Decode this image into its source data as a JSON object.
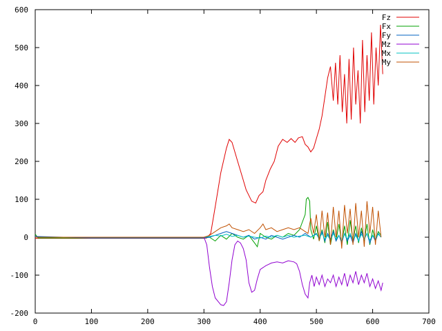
{
  "chart_data": {
    "type": "line",
    "title": "",
    "xlabel": "",
    "ylabel": "",
    "xlim": [
      0,
      700
    ],
    "ylim": [
      -200,
      600
    ],
    "xticks": [
      0,
      100,
      200,
      300,
      400,
      500,
      600,
      700
    ],
    "yticks": [
      -200,
      -100,
      0,
      100,
      200,
      300,
      400,
      500,
      600
    ],
    "grid": false,
    "legend": "top-right",
    "series": [
      {
        "name": "Fz",
        "color": "#e00000",
        "points": [
          [
            0,
            -3
          ],
          [
            100,
            -3
          ],
          [
            200,
            -3
          ],
          [
            300,
            -3
          ],
          [
            305,
            -2
          ],
          [
            312,
            10
          ],
          [
            320,
            80
          ],
          [
            330,
            170
          ],
          [
            340,
            235
          ],
          [
            345,
            258
          ],
          [
            350,
            250
          ],
          [
            360,
            200
          ],
          [
            368,
            160
          ],
          [
            375,
            125
          ],
          [
            385,
            95
          ],
          [
            392,
            90
          ],
          [
            398,
            110
          ],
          [
            405,
            120
          ],
          [
            410,
            150
          ],
          [
            418,
            180
          ],
          [
            425,
            200
          ],
          [
            432,
            240
          ],
          [
            440,
            258
          ],
          [
            448,
            250
          ],
          [
            455,
            260
          ],
          [
            462,
            250
          ],
          [
            468,
            262
          ],
          [
            475,
            265
          ],
          [
            480,
            245
          ],
          [
            485,
            238
          ],
          [
            490,
            225
          ],
          [
            495,
            235
          ],
          [
            500,
            260
          ],
          [
            505,
            285
          ],
          [
            510,
            320
          ],
          [
            515,
            370
          ],
          [
            520,
            420
          ],
          [
            525,
            450
          ],
          [
            530,
            360
          ],
          [
            534,
            460
          ],
          [
            538,
            350
          ],
          [
            542,
            480
          ],
          [
            546,
            330
          ],
          [
            550,
            430
          ],
          [
            554,
            300
          ],
          [
            558,
            470
          ],
          [
            562,
            310
          ],
          [
            566,
            500
          ],
          [
            570,
            350
          ],
          [
            574,
            440
          ],
          [
            578,
            300
          ],
          [
            582,
            520
          ],
          [
            586,
            330
          ],
          [
            590,
            480
          ],
          [
            594,
            360
          ],
          [
            598,
            540
          ],
          [
            602,
            350
          ],
          [
            606,
            500
          ],
          [
            610,
            400
          ],
          [
            614,
            560
          ],
          [
            618,
            430
          ]
        ]
      },
      {
        "name": "Fx",
        "color": "#00a000",
        "points": [
          [
            0,
            8
          ],
          [
            5,
            -2
          ],
          [
            100,
            -2
          ],
          [
            200,
            -2
          ],
          [
            300,
            -2
          ],
          [
            310,
            0
          ],
          [
            320,
            -10
          ],
          [
            330,
            5
          ],
          [
            340,
            -5
          ],
          [
            350,
            10
          ],
          [
            360,
            0
          ],
          [
            370,
            -5
          ],
          [
            380,
            5
          ],
          [
            390,
            -15
          ],
          [
            395,
            -25
          ],
          [
            400,
            10
          ],
          [
            410,
            0
          ],
          [
            420,
            -5
          ],
          [
            430,
            5
          ],
          [
            440,
            0
          ],
          [
            450,
            10
          ],
          [
            460,
            5
          ],
          [
            470,
            20
          ],
          [
            480,
            60
          ],
          [
            482,
            100
          ],
          [
            485,
            105
          ],
          [
            488,
            95
          ],
          [
            490,
            20
          ],
          [
            495,
            -5
          ],
          [
            500,
            30
          ],
          [
            505,
            -10
          ],
          [
            510,
            20
          ],
          [
            515,
            -15
          ],
          [
            520,
            40
          ],
          [
            525,
            -20
          ],
          [
            530,
            20
          ],
          [
            535,
            -10
          ],
          [
            540,
            35
          ],
          [
            545,
            -15
          ],
          [
            550,
            30
          ],
          [
            555,
            -20
          ],
          [
            560,
            45
          ],
          [
            565,
            -10
          ],
          [
            570,
            30
          ],
          [
            575,
            -15
          ],
          [
            580,
            25
          ],
          [
            585,
            -10
          ],
          [
            590,
            35
          ],
          [
            595,
            -20
          ],
          [
            600,
            20
          ],
          [
            605,
            -10
          ],
          [
            610,
            15
          ],
          [
            615,
            5
          ]
        ]
      },
      {
        "name": "Fy",
        "color": "#0060c0",
        "points": [
          [
            0,
            2
          ],
          [
            100,
            -2
          ],
          [
            200,
            -2
          ],
          [
            300,
            -2
          ],
          [
            310,
            0
          ],
          [
            320,
            5
          ],
          [
            330,
            10
          ],
          [
            340,
            15
          ],
          [
            350,
            10
          ],
          [
            360,
            5
          ],
          [
            370,
            0
          ],
          [
            380,
            5
          ],
          [
            390,
            -5
          ],
          [
            400,
            0
          ],
          [
            410,
            -5
          ],
          [
            420,
            5
          ],
          [
            430,
            0
          ],
          [
            440,
            -5
          ],
          [
            450,
            0
          ],
          [
            460,
            5
          ],
          [
            470,
            0
          ],
          [
            480,
            10
          ],
          [
            490,
            0
          ],
          [
            500,
            10
          ],
          [
            505,
            -5
          ],
          [
            510,
            15
          ],
          [
            515,
            -10
          ],
          [
            520,
            10
          ],
          [
            525,
            -5
          ],
          [
            530,
            15
          ],
          [
            535,
            -10
          ],
          [
            540,
            5
          ],
          [
            545,
            -15
          ],
          [
            550,
            10
          ],
          [
            555,
            -10
          ],
          [
            560,
            5
          ],
          [
            565,
            -15
          ],
          [
            570,
            10
          ],
          [
            575,
            -10
          ],
          [
            580,
            15
          ],
          [
            585,
            -5
          ],
          [
            590,
            10
          ],
          [
            595,
            -15
          ],
          [
            600,
            5
          ],
          [
            605,
            -10
          ],
          [
            610,
            10
          ],
          [
            615,
            0
          ]
        ]
      },
      {
        "name": "Mz",
        "color": "#9000d0",
        "points": [
          [
            0,
            0
          ],
          [
            100,
            0
          ],
          [
            200,
            0
          ],
          [
            300,
            0
          ],
          [
            305,
            -20
          ],
          [
            310,
            -80
          ],
          [
            315,
            -130
          ],
          [
            320,
            -160
          ],
          [
            330,
            -178
          ],
          [
            335,
            -180
          ],
          [
            340,
            -170
          ],
          [
            345,
            -120
          ],
          [
            350,
            -60
          ],
          [
            355,
            -20
          ],
          [
            360,
            -10
          ],
          [
            365,
            -15
          ],
          [
            370,
            -30
          ],
          [
            375,
            -60
          ],
          [
            380,
            -120
          ],
          [
            385,
            -145
          ],
          [
            390,
            -140
          ],
          [
            395,
            -110
          ],
          [
            400,
            -85
          ],
          [
            410,
            -75
          ],
          [
            420,
            -68
          ],
          [
            430,
            -65
          ],
          [
            440,
            -68
          ],
          [
            450,
            -62
          ],
          [
            460,
            -65
          ],
          [
            465,
            -70
          ],
          [
            470,
            -90
          ],
          [
            475,
            -125
          ],
          [
            480,
            -150
          ],
          [
            485,
            -160
          ],
          [
            488,
            -120
          ],
          [
            492,
            -100
          ],
          [
            496,
            -130
          ],
          [
            500,
            -105
          ],
          [
            505,
            -125
          ],
          [
            510,
            -100
          ],
          [
            515,
            -130
          ],
          [
            520,
            -110
          ],
          [
            525,
            -120
          ],
          [
            530,
            -100
          ],
          [
            535,
            -130
          ],
          [
            540,
            -105
          ],
          [
            545,
            -125
          ],
          [
            550,
            -95
          ],
          [
            555,
            -130
          ],
          [
            560,
            -100
          ],
          [
            565,
            -120
          ],
          [
            570,
            -90
          ],
          [
            575,
            -125
          ],
          [
            580,
            -100
          ],
          [
            585,
            -120
          ],
          [
            590,
            -95
          ],
          [
            595,
            -130
          ],
          [
            600,
            -110
          ],
          [
            605,
            -135
          ],
          [
            610,
            -115
          ],
          [
            615,
            -140
          ],
          [
            618,
            -120
          ]
        ]
      },
      {
        "name": "Mx",
        "color": "#00c0c0",
        "points": [
          [
            0,
            0
          ],
          [
            100,
            0
          ],
          [
            200,
            0
          ],
          [
            300,
            0
          ],
          [
            310,
            2
          ],
          [
            320,
            5
          ],
          [
            330,
            3
          ],
          [
            340,
            8
          ],
          [
            350,
            2
          ],
          [
            360,
            5
          ],
          [
            370,
            0
          ],
          [
            380,
            3
          ],
          [
            390,
            0
          ],
          [
            400,
            -2
          ],
          [
            410,
            3
          ],
          [
            420,
            0
          ],
          [
            430,
            5
          ],
          [
            440,
            0
          ],
          [
            450,
            5
          ],
          [
            460,
            0
          ],
          [
            470,
            3
          ],
          [
            480,
            5
          ],
          [
            490,
            0
          ],
          [
            500,
            8
          ],
          [
            505,
            -3
          ],
          [
            510,
            10
          ],
          [
            515,
            -5
          ],
          [
            520,
            5
          ],
          [
            525,
            -8
          ],
          [
            530,
            10
          ],
          [
            535,
            -5
          ],
          [
            540,
            5
          ],
          [
            545,
            -10
          ],
          [
            550,
            8
          ],
          [
            555,
            -5
          ],
          [
            560,
            10
          ],
          [
            565,
            -8
          ],
          [
            570,
            5
          ],
          [
            575,
            -10
          ],
          [
            580,
            8
          ],
          [
            585,
            -5
          ],
          [
            590,
            10
          ],
          [
            595,
            -8
          ],
          [
            600,
            5
          ],
          [
            605,
            -5
          ],
          [
            610,
            8
          ],
          [
            615,
            0
          ]
        ]
      },
      {
        "name": "My",
        "color": "#c05000",
        "points": [
          [
            0,
            0
          ],
          [
            100,
            0
          ],
          [
            200,
            0
          ],
          [
            300,
            0
          ],
          [
            310,
            5
          ],
          [
            320,
            15
          ],
          [
            330,
            25
          ],
          [
            340,
            30
          ],
          [
            345,
            35
          ],
          [
            350,
            25
          ],
          [
            360,
            20
          ],
          [
            370,
            15
          ],
          [
            380,
            20
          ],
          [
            390,
            10
          ],
          [
            400,
            25
          ],
          [
            405,
            35
          ],
          [
            410,
            20
          ],
          [
            420,
            25
          ],
          [
            430,
            15
          ],
          [
            440,
            20
          ],
          [
            450,
            25
          ],
          [
            460,
            20
          ],
          [
            470,
            25
          ],
          [
            480,
            15
          ],
          [
            485,
            10
          ],
          [
            490,
            50
          ],
          [
            495,
            10
          ],
          [
            500,
            60
          ],
          [
            505,
            -10
          ],
          [
            510,
            70
          ],
          [
            515,
            0
          ],
          [
            520,
            65
          ],
          [
            525,
            -20
          ],
          [
            530,
            80
          ],
          [
            535,
            0
          ],
          [
            540,
            70
          ],
          [
            545,
            -30
          ],
          [
            550,
            85
          ],
          [
            555,
            10
          ],
          [
            560,
            75
          ],
          [
            565,
            -20
          ],
          [
            570,
            90
          ],
          [
            575,
            0
          ],
          [
            580,
            70
          ],
          [
            585,
            -25
          ],
          [
            590,
            95
          ],
          [
            595,
            10
          ],
          [
            600,
            80
          ],
          [
            605,
            -20
          ],
          [
            610,
            70
          ],
          [
            615,
            0
          ]
        ]
      }
    ]
  }
}
